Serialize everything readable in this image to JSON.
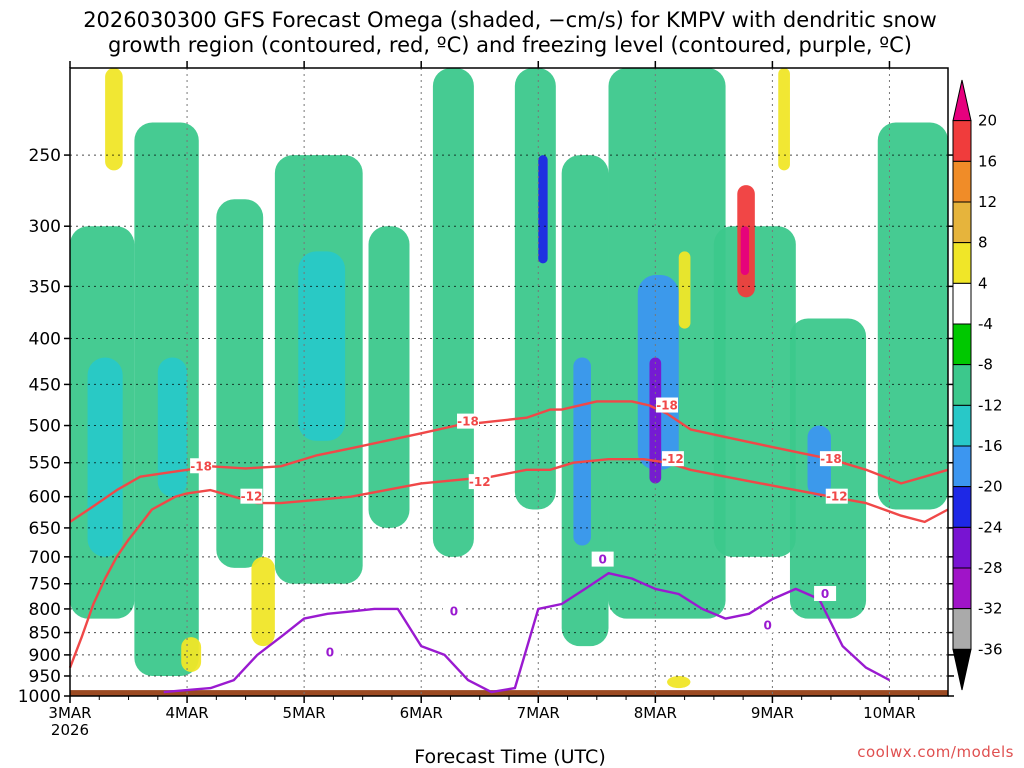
{
  "chart_data": {
    "type": "heatmap",
    "title_lines": [
      "2026030300 GFS Forecast Omega (shaded, −cm/s) for KMPV with dendritic snow",
      "growth region (contoured, red, ºC) and freezing level (contoured, purple, ºC)"
    ],
    "xlabel": "Forecast Time (UTC)",
    "ylabel": "",
    "credit": "coolwx.com/models",
    "x_ticks": [
      {
        "label": "3MAR",
        "t": 0,
        "sub": "2026"
      },
      {
        "label": "4MAR",
        "t": 1
      },
      {
        "label": "5MAR",
        "t": 2
      },
      {
        "label": "6MAR",
        "t": 3
      },
      {
        "label": "7MAR",
        "t": 4
      },
      {
        "label": "8MAR",
        "t": 5
      },
      {
        "label": "9MAR",
        "t": 6
      },
      {
        "label": "10MAR",
        "t": 7
      }
    ],
    "xlim": [
      0,
      7.5
    ],
    "y_ticks": [
      250,
      300,
      350,
      400,
      450,
      500,
      550,
      600,
      650,
      700,
      750,
      800,
      850,
      900,
      950,
      1000
    ],
    "ylim_hPa": [
      200,
      1000
    ],
    "y_scale": "log-pressure",
    "surface_pressure_hPa": 985,
    "colorbar": {
      "values": [
        "20",
        "16",
        "12",
        "8",
        "4",
        "-4",
        "-8",
        "-12",
        "-16",
        "-20",
        "-24",
        "-28",
        "-32",
        "-36"
      ],
      "colors": [
        "#e6007e",
        "#f03c3c",
        "#f08c28",
        "#e6b43c",
        "#f0e628",
        "#ffffff",
        "#00c800",
        "#3cc88c",
        "#28c8c8",
        "#3c96f0",
        "#1e28e6",
        "#7814d2",
        "#a014c8",
        "#aaaaaa",
        "#000000"
      ]
    },
    "series": [
      {
        "name": "-18",
        "color": "#f04848",
        "x": [
          0,
          0.2,
          0.4,
          0.6,
          0.8,
          1.0,
          1.2,
          1.5,
          1.8,
          2.1,
          2.4,
          2.7,
          3.0,
          3.3,
          3.6,
          3.9,
          4.1,
          4.2,
          4.5,
          4.8,
          4.95,
          5.1,
          5.3,
          5.6,
          5.9,
          6.2,
          6.5,
          6.8,
          7.1,
          7.3,
          7.5
        ],
        "values": [
          640,
          615,
          590,
          570,
          565,
          560,
          555,
          558,
          555,
          540,
          530,
          520,
          510,
          500,
          495,
          490,
          480,
          480,
          470,
          470,
          475,
          485,
          505,
          515,
          525,
          535,
          545,
          560,
          580,
          570,
          560
        ]
      },
      {
        "name": "-12",
        "color": "#f04848",
        "x": [
          0,
          0.1,
          0.2,
          0.3,
          0.4,
          0.5,
          0.6,
          0.7,
          0.8,
          0.9,
          1.0,
          1.2,
          1.4,
          1.6,
          1.8,
          2.1,
          2.4,
          2.7,
          3.0,
          3.3,
          3.6,
          3.9,
          4.1,
          4.3,
          4.6,
          4.9,
          5.1,
          5.3,
          5.6,
          5.9,
          6.2,
          6.5,
          6.8,
          7.1,
          7.3,
          7.5
        ],
        "values": [
          930,
          860,
          790,
          740,
          700,
          670,
          645,
          620,
          610,
          600,
          595,
          590,
          600,
          610,
          610,
          605,
          600,
          590,
          580,
          575,
          570,
          560,
          560,
          550,
          545,
          545,
          550,
          560,
          570,
          580,
          590,
          600,
          610,
          630,
          640,
          620
        ]
      },
      {
        "name": "0",
        "color": "#9a1ad0",
        "x": [
          0.8,
          1.0,
          1.2,
          1.4,
          1.6,
          1.8,
          2.0,
          2.2,
          2.4,
          2.6,
          2.8,
          3.0,
          3.2,
          3.4,
          3.6,
          3.8,
          4.0,
          4.2,
          4.4,
          4.6,
          4.8,
          5.0,
          5.2,
          5.4,
          5.6,
          5.8,
          6.0,
          6.2,
          6.4,
          6.6,
          6.8,
          7.0
        ],
        "values": [
          990,
          985,
          980,
          960,
          900,
          860,
          820,
          810,
          805,
          800,
          800,
          880,
          900,
          960,
          990,
          980,
          800,
          790,
          760,
          730,
          740,
          760,
          770,
          800,
          820,
          810,
          780,
          760,
          780,
          880,
          930,
          960
        ]
      }
    ],
    "contour_labels": [
      {
        "text": "-18",
        "series": "-18",
        "x": 1.12,
        "y": 555
      },
      {
        "text": "-12",
        "series": "-12",
        "x": 1.55,
        "y": 600
      },
      {
        "text": "-18",
        "series": "-18",
        "x": 3.4,
        "y": 495
      },
      {
        "text": "-12",
        "series": "-12",
        "x": 3.5,
        "y": 578
      },
      {
        "text": "-18",
        "series": "-18",
        "x": 5.1,
        "y": 475
      },
      {
        "text": "-12",
        "series": "-12",
        "x": 5.15,
        "y": 545
      },
      {
        "text": "-18",
        "series": "-18",
        "x": 6.5,
        "y": 545
      },
      {
        "text": "-12",
        "series": "-12",
        "x": 6.55,
        "y": 600
      },
      {
        "text": "0",
        "series": "0",
        "x": 2.22,
        "y": 895
      },
      {
        "text": "0",
        "series": "0",
        "x": 3.28,
        "y": 805
      },
      {
        "text": "0",
        "series": "0",
        "x": 4.55,
        "y": 705
      },
      {
        "text": "0",
        "series": "0",
        "x": 5.96,
        "y": 835
      },
      {
        "text": "0",
        "series": "0",
        "x": 6.45,
        "y": 770
      }
    ],
    "omega_features": [
      {
        "level": "-8",
        "x": [
          0.0,
          0.55
        ],
        "p": [
          300,
          820
        ]
      },
      {
        "level": "-12",
        "x": [
          0.15,
          0.45
        ],
        "p": [
          420,
          700
        ]
      },
      {
        "level": "-8",
        "x": [
          0.55,
          1.1
        ],
        "p": [
          230,
          950
        ]
      },
      {
        "level": "-12",
        "x": [
          0.75,
          1.0
        ],
        "p": [
          420,
          600
        ]
      },
      {
        "level": "-8",
        "x": [
          1.25,
          1.65
        ],
        "p": [
          280,
          720
        ]
      },
      {
        "level": "-8",
        "x": [
          1.75,
          2.5
        ],
        "p": [
          250,
          750
        ]
      },
      {
        "level": "-12",
        "x": [
          1.95,
          2.35
        ],
        "p": [
          320,
          520
        ]
      },
      {
        "level": "-8",
        "x": [
          2.55,
          2.9
        ],
        "p": [
          300,
          650
        ]
      },
      {
        "level": "-8",
        "x": [
          3.1,
          3.45
        ],
        "p": [
          200,
          700
        ]
      },
      {
        "level": "-8",
        "x": [
          3.8,
          4.15
        ],
        "p": [
          200,
          620
        ]
      },
      {
        "level": "-20",
        "x": [
          4.0,
          4.08
        ],
        "p": [
          250,
          330
        ]
      },
      {
        "level": "-8",
        "x": [
          4.2,
          4.6
        ],
        "p": [
          250,
          880
        ]
      },
      {
        "level": "-16",
        "x": [
          4.3,
          4.45
        ],
        "p": [
          420,
          680
        ]
      },
      {
        "level": "-8",
        "x": [
          4.6,
          5.6
        ],
        "p": [
          200,
          820
        ]
      },
      {
        "level": "-16",
        "x": [
          4.85,
          5.2
        ],
        "p": [
          340,
          560
        ]
      },
      {
        "level": "-24",
        "x": [
          4.95,
          5.05
        ],
        "p": [
          420,
          580
        ]
      },
      {
        "level": "-8",
        "x": [
          5.5,
          6.2
        ],
        "p": [
          300,
          700
        ]
      },
      {
        "level": "-8",
        "x": [
          6.15,
          6.8
        ],
        "p": [
          380,
          820
        ]
      },
      {
        "level": "-16",
        "x": [
          6.3,
          6.5
        ],
        "p": [
          500,
          600
        ]
      },
      {
        "level": "-8",
        "x": [
          6.9,
          7.5
        ],
        "p": [
          230,
          620
        ]
      },
      {
        "level": "16",
        "x": [
          5.7,
          5.85
        ],
        "p": [
          270,
          360
        ]
      },
      {
        "level": "20",
        "x": [
          5.73,
          5.8
        ],
        "p": [
          300,
          340
        ]
      },
      {
        "level": "4",
        "x": [
          0.3,
          0.45
        ],
        "p": [
          200,
          260
        ]
      },
      {
        "level": "4",
        "x": [
          1.55,
          1.75
        ],
        "p": [
          700,
          880
        ]
      },
      {
        "level": "4",
        "x": [
          0.95,
          1.12
        ],
        "p": [
          860,
          940
        ]
      },
      {
        "level": "4",
        "x": [
          6.05,
          6.15
        ],
        "p": [
          200,
          260
        ]
      },
      {
        "level": "4",
        "x": [
          5.1,
          5.3
        ],
        "p": [
          950,
          980
        ]
      },
      {
        "level": "4",
        "x": [
          5.2,
          5.3
        ],
        "p": [
          320,
          390
        ]
      }
    ]
  }
}
